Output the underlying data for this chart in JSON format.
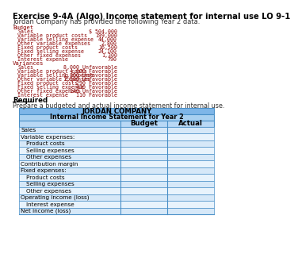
{
  "title": "Exercise 9-4A (Algo) Income statement for internal use LO 9-1",
  "subtitle": "Jordan Company has provided the following Year 2 data.",
  "budget_label": "Budget",
  "budget_items": [
    [
      "Sales",
      "$ 504,000"
    ],
    [
      "Variable product costs",
      "199,000"
    ],
    [
      "Variable selling expense",
      "44,000"
    ],
    [
      "Other variable expenses",
      "2,800"
    ],
    [
      "Fixed product costs",
      "16,500"
    ],
    [
      "Fixed selling expense",
      "24,100"
    ],
    [
      "Other fixed expenses",
      "1,300"
    ],
    [
      "Interest expense",
      "790"
    ]
  ],
  "variances_label": "Variances",
  "variance_items": [
    [
      "Sales",
      "8,000 Unfavorable"
    ],
    [
      "Variable product costs",
      "4,600 Favorable"
    ],
    [
      "Variable selling expense",
      "1,800 Unfavorable"
    ],
    [
      "Other variable expenses",
      "1,500 Unfavorable"
    ],
    [
      "Fixed product costs",
      "290 Favorable"
    ],
    [
      "Fixed selling expense",
      "430 Favorable"
    ],
    [
      "Other fixed expenses",
      "140 Unfavorable"
    ],
    [
      "Interest expense",
      "110 Favorable"
    ]
  ],
  "required_label": "Required",
  "required_text": "Prepare a budgeted and actual income statement for internal use.",
  "table_title": "JORDAN COMPANY",
  "table_subtitle": "Internal Income Statement for Year 2",
  "col_headers": [
    "Budget",
    "Actual"
  ],
  "table_rows": [
    {
      "label": "Sales",
      "indent": 0
    },
    {
      "label": "Variable expenses:",
      "indent": 0
    },
    {
      "label": "Product costs",
      "indent": 1
    },
    {
      "label": "Selling expenses",
      "indent": 1
    },
    {
      "label": "Other expenses",
      "indent": 1
    },
    {
      "label": "Contribution margin",
      "indent": 0
    },
    {
      "label": "Fixed expenses:",
      "indent": 0
    },
    {
      "label": "Product costs",
      "indent": 1
    },
    {
      "label": "Selling expenses",
      "indent": 1
    },
    {
      "label": "Other expenses",
      "indent": 1
    },
    {
      "label": "Operating income (loss)",
      "indent": 0
    },
    {
      "label": "Interest expense",
      "indent": 1
    },
    {
      "label": "Net income (loss)",
      "indent": 0
    }
  ],
  "header_bg": "#7EB6E8",
  "subheader_bg": "#A8D0F0",
  "col_header_bg": "#B8D8F5",
  "row_bg_odd": "#D6E8F8",
  "row_bg_even": "#E8F3FC",
  "border_color": "#4A90C8",
  "monospace_color": "#8B0000",
  "title_color": "#000000"
}
